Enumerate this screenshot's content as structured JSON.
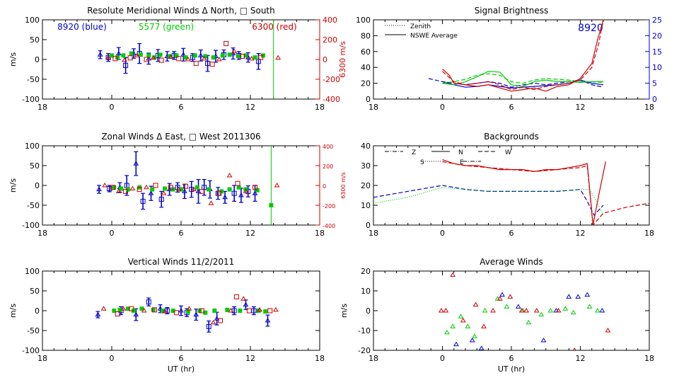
{
  "colors": {
    "blue": "#0000cc",
    "green": "#00cc00",
    "red": "#cc0000",
    "axis": "#000000"
  },
  "xticks": [
    "18",
    "0",
    "6",
    "12",
    "18"
  ],
  "xlabel": "UT (hr)",
  "chart_data": [
    {
      "id": "meridional",
      "type": "scatter",
      "title": "Resolute Meridional Winds Δ North, □ South",
      "ylabel": "m/s",
      "ylim": [
        -100,
        100
      ],
      "yticks": [
        100,
        50,
        0,
        -50,
        -100
      ],
      "y2label": "6300 m/s",
      "y2lim": [
        -400,
        400
      ],
      "y2ticks": [
        400,
        200,
        0,
        -200,
        -400
      ],
      "annotations": [
        "8920 (blue)",
        "5577 (green)",
        "6300 (red)"
      ],
      "vline": 14,
      "series": [
        {
          "name": "8920",
          "color": "blue",
          "x": [
            -1,
            -0.3,
            0.6,
            1.2,
            1.9,
            2.4,
            3.2,
            4.0,
            4.8,
            5.4,
            6.2,
            7.0,
            7.7,
            8.3,
            9.0,
            9.7,
            10.5,
            11.0,
            11.8,
            12.7
          ],
          "y": [
            12,
            5,
            15,
            -15,
            15,
            15,
            2,
            10,
            8,
            10,
            12,
            5,
            10,
            -10,
            8,
            12,
            15,
            10,
            5,
            -5
          ],
          "err": [
            10,
            10,
            15,
            20,
            12,
            25,
            14,
            15,
            12,
            10,
            16,
            10,
            14,
            20,
            15,
            12,
            14,
            10,
            12,
            20
          ]
        },
        {
          "name": "5577",
          "color": "green",
          "x": [
            0,
            0.5,
            1.0,
            1.7,
            2.5,
            3.2,
            3.7,
            4.2,
            5.0,
            5.6,
            6.4,
            7.2,
            8.1,
            8.8,
            9.6,
            10.2,
            11.0,
            11.6,
            12.4,
            13.1
          ],
          "y": [
            10,
            5,
            10,
            15,
            12,
            10,
            5,
            12,
            8,
            10,
            5,
            10,
            8,
            5,
            10,
            12,
            8,
            10,
            5,
            10
          ]
        },
        {
          "name": "6300",
          "color": "red",
          "x": [
            -0.3,
            0.3,
            1.1,
            1.6,
            2.2,
            3.0,
            3.6,
            4.3,
            5.1,
            5.8,
            6.6,
            7.3,
            8.0,
            8.7,
            9.3,
            9.9,
            10.6,
            11.3,
            12.1,
            12.9,
            14.4
          ],
          "y": [
            5,
            2,
            -2,
            4,
            10,
            0,
            4,
            -2,
            6,
            2,
            0,
            -10,
            2,
            -12,
            0,
            40,
            20,
            8,
            2,
            5,
            4
          ]
        }
      ]
    },
    {
      "id": "zonal",
      "type": "scatter",
      "title": "Zonal Winds Δ East, □ West 2011306",
      "ylabel": "m/s",
      "ylim": [
        -100,
        100
      ],
      "yticks": [
        100,
        50,
        0,
        -50,
        -100
      ],
      "y2label": "6300 m/s",
      "y2lim": [
        -400,
        400
      ],
      "y2ticks": [
        400,
        200,
        0,
        -200,
        -400
      ],
      "vline": 13.8,
      "series": [
        {
          "name": "8920",
          "color": "blue",
          "x": [
            -1.1,
            -0.2,
            0.7,
            1.3,
            2.1,
            2.7,
            3.4,
            4.3,
            5.0,
            5.7,
            6.3,
            6.9,
            7.5,
            8.0,
            8.5,
            9.2,
            9.8,
            10.6,
            11.2,
            11.8,
            12.4
          ],
          "y": [
            -10,
            -8,
            -5,
            0,
            55,
            -40,
            -20,
            -35,
            -10,
            -5,
            -15,
            -10,
            -15,
            -5,
            -10,
            -20,
            -30,
            -20,
            -25,
            -15,
            -20
          ],
          "err": [
            10,
            8,
            12,
            25,
            30,
            20,
            18,
            20,
            15,
            12,
            18,
            20,
            30,
            20,
            22,
            15,
            15,
            20,
            18,
            14,
            20
          ]
        },
        {
          "name": "5577",
          "color": "green",
          "x": [
            0.2,
            0.8,
            1.4,
            2.4,
            3.5,
            4.6,
            5.3,
            6.0,
            7.4,
            8.4,
            9.5,
            10.2,
            11.0,
            11.6,
            12.6,
            13.8
          ],
          "y": [
            -5,
            -8,
            -10,
            -5,
            -10,
            -8,
            -10,
            -10,
            -5,
            -10,
            -15,
            -10,
            -5,
            -10,
            -12,
            -50
          ]
        },
        {
          "name": "6300",
          "color": "red",
          "x": [
            -0.6,
            0.1,
            0.6,
            1.2,
            1.8,
            2.4,
            3.0,
            3.8,
            4.5,
            5.1,
            5.8,
            6.4,
            7.1,
            7.8,
            8.6,
            9.3,
            10.2,
            10.9,
            11.6,
            12.4,
            14.3
          ],
          "y": [
            0,
            -5,
            -15,
            -15,
            -8,
            -10,
            -5,
            0,
            -20,
            -5,
            -10,
            -2,
            -10,
            -15,
            -45,
            -20,
            25,
            5,
            -15,
            -5,
            0
          ]
        }
      ]
    },
    {
      "id": "vertical",
      "type": "scatter",
      "title": "Vertical Winds 11/2/2011",
      "ylabel": "m/s",
      "ylim": [
        -100,
        100
      ],
      "yticks": [
        100,
        50,
        0,
        -50,
        -100
      ],
      "series": [
        {
          "name": "8920",
          "color": "blue",
          "x": [
            -1.2,
            0.8,
            2.1,
            3.2,
            4.2,
            4.8,
            6.0,
            6.5,
            7.3,
            8.4,
            9.1,
            10.6,
            11.6,
            12.3,
            13.5
          ],
          "y": [
            -10,
            0,
            -10,
            22,
            5,
            0,
            0,
            -5,
            -10,
            -40,
            -20,
            0,
            15,
            0,
            -25
          ],
          "err": [
            8,
            10,
            15,
            10,
            10,
            8,
            12,
            10,
            14,
            14,
            16,
            10,
            12,
            10,
            14
          ]
        },
        {
          "name": "5577",
          "color": "green",
          "x": [
            0.2,
            0.7,
            1.4,
            1.9,
            2.6,
            3.6,
            4.4,
            5.3,
            6.6,
            7.6,
            8.1,
            8.9,
            10.0,
            11.1,
            12.7,
            13.3
          ],
          "y": [
            0,
            2,
            5,
            0,
            5,
            2,
            0,
            0,
            -2,
            0,
            -5,
            0,
            2,
            0,
            0,
            -2
          ]
        },
        {
          "name": "6300",
          "color": "red",
          "x": [
            -0.7,
            0.5,
            1.0,
            1.7,
            2.8,
            3.7,
            4.6,
            5.6,
            6.7,
            7.8,
            8.8,
            9.4,
            10.3,
            10.8,
            11.4,
            11.9,
            12.8,
            13.7,
            14.2
          ],
          "y": [
            5,
            -8,
            5,
            5,
            0,
            2,
            -2,
            -5,
            5,
            0,
            -30,
            -25,
            0,
            35,
            30,
            0,
            2,
            0,
            2
          ]
        }
      ]
    },
    {
      "id": "brightness",
      "type": "line",
      "title": "Signal Brightness",
      "ylim": [
        0,
        100
      ],
      "yticks": [
        100,
        80,
        60,
        40,
        20,
        0
      ],
      "y2lim": [
        0,
        25
      ],
      "y2ticks": [
        25,
        20,
        15,
        10,
        5,
        0
      ],
      "legend": [
        "Zenith",
        "NSWE Average"
      ],
      "annotation": "8920",
      "series": [
        {
          "name": "blue zenith",
          "color": "blue",
          "style": "dash",
          "x": [
            -1.2,
            0,
            1,
            2,
            3,
            4,
            5,
            6,
            7,
            8,
            9,
            10,
            11,
            12,
            13,
            14
          ],
          "y": [
            26,
            22,
            20,
            18,
            20,
            22,
            20,
            15,
            18,
            20,
            18,
            20,
            22,
            24,
            18,
            15
          ]
        },
        {
          "name": "blue average",
          "color": "blue",
          "style": "solid",
          "x": [
            0,
            1,
            2,
            3,
            4,
            5,
            6,
            7,
            8,
            9,
            10,
            11,
            12,
            13,
            14
          ],
          "y": [
            22,
            18,
            15,
            16,
            18,
            16,
            14,
            15,
            16,
            17,
            18,
            20,
            24,
            20,
            18
          ]
        },
        {
          "name": "green zenith",
          "color": "green",
          "style": "dash",
          "x": [
            0,
            1,
            2,
            3,
            4,
            5,
            6,
            7,
            8,
            9,
            10,
            11,
            12,
            13,
            14
          ],
          "y": [
            20,
            22,
            25,
            30,
            32,
            30,
            22,
            20,
            24,
            26,
            25,
            24,
            22,
            22,
            21
          ]
        },
        {
          "name": "green average",
          "color": "green",
          "style": "solid",
          "x": [
            0,
            1,
            2,
            3,
            4,
            5,
            6,
            7,
            8,
            9,
            10,
            11,
            12,
            13,
            14
          ],
          "y": [
            20,
            18,
            22,
            28,
            35,
            34,
            18,
            16,
            22,
            24,
            22,
            22,
            21,
            22,
            22
          ]
        },
        {
          "name": "red zenith",
          "color": "red",
          "style": "dash",
          "x": [
            0,
            1,
            2,
            3,
            4,
            5,
            6,
            7,
            8,
            9,
            10,
            11,
            12,
            13,
            13.6,
            14
          ],
          "y": [
            35,
            22,
            18,
            20,
            22,
            18,
            12,
            15,
            12,
            16,
            18,
            20,
            24,
            40,
            70,
            100
          ]
        },
        {
          "name": "red average",
          "color": "red",
          "style": "solid",
          "x": [
            0,
            0.6,
            1,
            2,
            3,
            4,
            5,
            6,
            7,
            8,
            9,
            10,
            11,
            12,
            13,
            13.5,
            14
          ],
          "y": [
            38,
            30,
            20,
            18,
            16,
            18,
            14,
            10,
            12,
            14,
            10,
            16,
            18,
            26,
            45,
            75,
            100
          ]
        }
      ]
    },
    {
      "id": "backgrounds",
      "type": "line",
      "title": "Backgrounds",
      "ylim": [
        0,
        40
      ],
      "yticks": [
        40,
        30,
        20,
        10,
        0
      ],
      "legend": [
        "Z",
        "N",
        "W",
        "S",
        "E"
      ],
      "series": [
        {
          "name": "blue bg",
          "color": "blue",
          "style": "dash",
          "x": [
            -6,
            -3,
            0,
            2,
            4,
            6,
            8,
            10,
            12,
            12.6,
            13.2,
            14
          ],
          "y": [
            14,
            17,
            20,
            18,
            17,
            17,
            17,
            17,
            18,
            12,
            5,
            10
          ]
        },
        {
          "name": "green bg",
          "color": "green",
          "style": "dot",
          "x": [
            -6,
            -3,
            0,
            2,
            4,
            6,
            8,
            10,
            12,
            12.8,
            13.4,
            14
          ],
          "y": [
            11,
            14,
            19,
            18,
            17,
            17,
            17,
            17,
            18,
            18,
            12,
            5
          ]
        },
        {
          "name": "red bg",
          "color": "red",
          "style": "solid",
          "x": [
            0,
            1,
            2,
            3,
            4,
            5,
            6,
            7,
            8,
            9,
            10,
            11,
            12,
            12.6,
            13.1,
            13.6,
            14.2
          ],
          "y": [
            33,
            31,
            30,
            30,
            29,
            28,
            28,
            28,
            27,
            28,
            28,
            29,
            30,
            31,
            0,
            15,
            32
          ]
        },
        {
          "name": "red bg dash",
          "color": "red",
          "style": "dash",
          "x": [
            0,
            2,
            4,
            6,
            8,
            10,
            12,
            12.6,
            13.1,
            14,
            16,
            18
          ],
          "y": [
            32,
            30,
            29,
            28,
            27,
            28,
            29,
            30,
            0,
            6,
            9,
            11
          ]
        }
      ]
    },
    {
      "id": "average",
      "type": "scatter",
      "title": "Average Winds",
      "ylabel": "m/s",
      "ylim": [
        -20,
        20
      ],
      "yticks": [
        20,
        10,
        0,
        -10,
        -20
      ],
      "series": [
        {
          "name": "blue",
          "color": "blue",
          "x": [
            1.2,
            2.6,
            3.4,
            5.2,
            6.6,
            8.8,
            9.9,
            11.0,
            11.8,
            12.6,
            13.9
          ],
          "y": [
            -17,
            -15,
            -19,
            8,
            2,
            -15,
            0,
            7,
            7,
            8,
            0
          ]
        },
        {
          "name": "green",
          "color": "green",
          "x": [
            0.4,
            0.9,
            1.6,
            2.2,
            2.8,
            3.7,
            4.8,
            5.6,
            7.0,
            7.5,
            8.6,
            9.4,
            10.7,
            11.4,
            12.8,
            13.5
          ],
          "y": [
            -11,
            -8,
            -3,
            -8,
            -13,
            0,
            6,
            2,
            0,
            -6,
            -2,
            0,
            1,
            -1,
            2,
            0
          ]
        },
        {
          "name": "red",
          "color": "red",
          "x": [
            -0.1,
            0.3,
            0.9,
            1.8,
            2.9,
            3.6,
            4.4,
            5.0,
            5.9,
            6.9,
            7.3,
            8.2,
            10.1,
            11.5,
            14.4
          ],
          "y": [
            0,
            0,
            18,
            -5,
            3,
            -8,
            0,
            6,
            7,
            0,
            0,
            0,
            0,
            -20,
            -10
          ]
        }
      ]
    }
  ]
}
